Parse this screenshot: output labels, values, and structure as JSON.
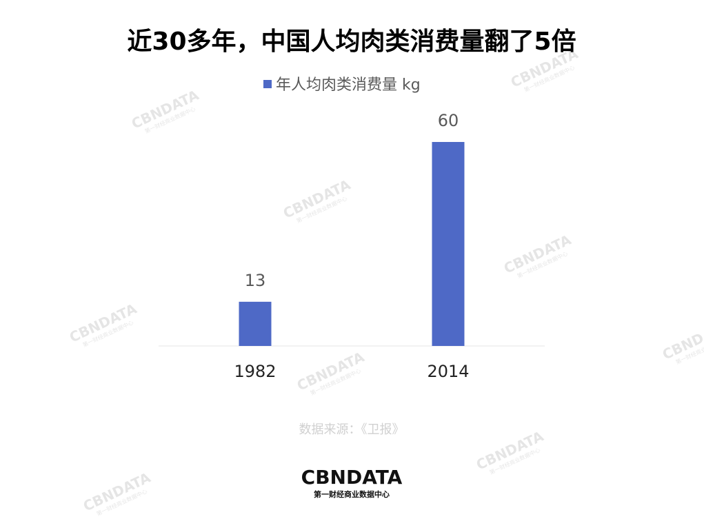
{
  "chart_data": {
    "type": "bar",
    "title": "近30多年，中国人均肉类消费量翻了5倍",
    "categories": [
      "1982",
      "2014"
    ],
    "series": [
      {
        "name": "年人均肉类消费量 kg",
        "color": "#4e69c6",
        "values": [
          13,
          60
        ]
      }
    ],
    "ylim": [
      0,
      60
    ],
    "legend": "top",
    "source": "数据来源：《卫报》"
  },
  "footer": {
    "brand": "CBNDATA",
    "tagline": "第一财经商业数据中心"
  }
}
